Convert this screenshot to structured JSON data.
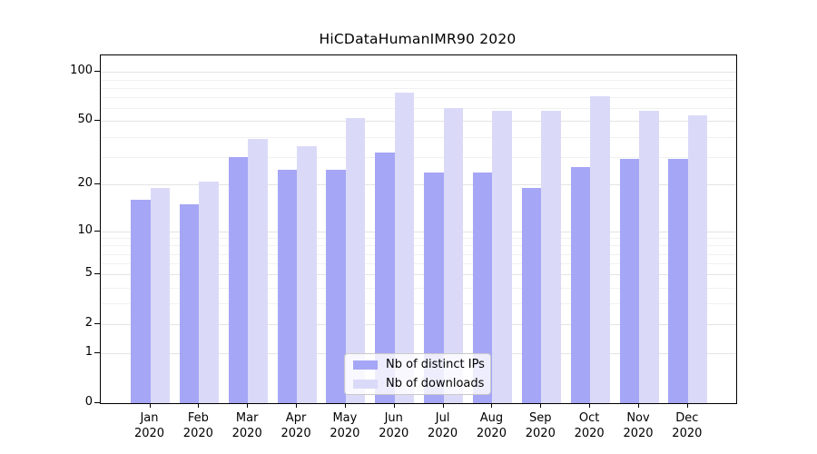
{
  "chart_data": {
    "type": "bar",
    "title": "HiCDataHumanIMR90 2020",
    "categories": [
      "Jan 2020",
      "Feb 2020",
      "Mar 2020",
      "Apr 2020",
      "May 2020",
      "Jun 2020",
      "Jul 2020",
      "Aug 2020",
      "Sep 2020",
      "Oct 2020",
      "Nov 2020",
      "Dec 2020"
    ],
    "series": [
      {
        "name": "Nb of distinct IPs",
        "color": "#a6a6f6",
        "values": [
          16,
          15,
          30,
          25,
          25,
          32,
          24,
          24,
          19,
          26,
          29,
          29
        ]
      },
      {
        "name": "Nb of downloads",
        "color": "#dadaf8",
        "values": [
          19,
          21,
          39,
          35,
          52,
          75,
          60,
          58,
          58,
          71,
          58,
          54
        ]
      }
    ],
    "xlabel": "",
    "ylabel": "",
    "yscale": "log1p",
    "ylim": [
      0,
      126
    ],
    "yticks": [
      0,
      1,
      2,
      5,
      10,
      20,
      50,
      100
    ],
    "minor_gridlines": [
      3,
      4,
      6,
      7,
      8,
      9,
      30,
      40,
      60,
      70,
      80,
      90
    ],
    "grid": true,
    "legend_position": "bottom-center"
  },
  "colors": {
    "background": "#ffffff",
    "axis": "#000000",
    "text": "#000000",
    "grid_major": "#e4e4e4",
    "grid_minor": "#f1f1f1",
    "ips_bar": "#a6a6f6",
    "downloads_bar": "#dadaf8",
    "legend_border": "#c9c9c9"
  }
}
